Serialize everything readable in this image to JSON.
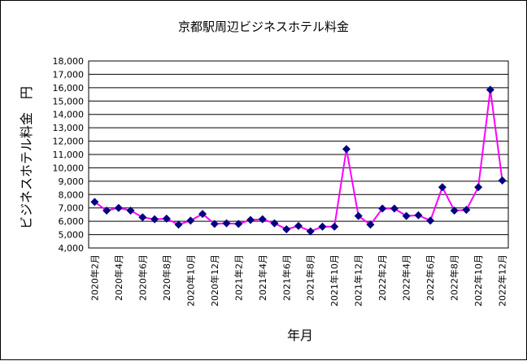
{
  "chart_data": {
    "type": "line",
    "title": "京都駅周辺ビジネスホテル料金",
    "xlabel": "年月",
    "ylabel": "ビジネスホテル料金　円",
    "ylim": [
      4000,
      18000
    ],
    "ytick_step": 1000,
    "ytick_labels": [
      "4,000",
      "5,000",
      "6,000",
      "7,000",
      "8,000",
      "9,000",
      "10,000",
      "11,000",
      "12,000",
      "13,000",
      "14,000",
      "15,000",
      "16,000",
      "17,000",
      "18,000"
    ],
    "grid": true,
    "line_color": "#ff00ff",
    "marker_color": "#000080",
    "categories": [
      "2020年2月",
      "2020年3月",
      "2020年4月",
      "2020年5月",
      "2020年6月",
      "2020年7月",
      "2020年8月",
      "2020年9月",
      "2020年10月",
      "2020年11月",
      "2020年12月",
      "2021年1月",
      "2021年2月",
      "2021年3月",
      "2021年4月",
      "2021年5月",
      "2021年6月",
      "2021年7月",
      "2021年8月",
      "2021年9月",
      "2021年10月",
      "2021年11月",
      "2021年12月",
      "2022年1月",
      "2022年2月",
      "2022年3月",
      "2022年4月",
      "2022年5月",
      "2022年6月",
      "2022年7月",
      "2022年8月",
      "2022年9月",
      "2022年10月",
      "2022年11月",
      "2022年12月"
    ],
    "visible_xtick_labels": [
      "2020年2月",
      "2020年4月",
      "2020年6月",
      "2020年8月",
      "2020年10月",
      "2020年12月",
      "2021年2月",
      "2021年4月",
      "2021年6月",
      "2021年8月",
      "2021年10月",
      "2021年12月",
      "2022年2月",
      "2022年4月",
      "2022年6月",
      "2022年8月",
      "2022年10月",
      "2022年12月"
    ],
    "values": [
      7450,
      6800,
      7000,
      6800,
      6300,
      6150,
      6200,
      5750,
      6050,
      6550,
      5800,
      5850,
      5800,
      6100,
      6150,
      5850,
      5400,
      5650,
      5250,
      5600,
      5600,
      11400,
      6400,
      5750,
      6950,
      6950,
      6400,
      6450,
      6050,
      8550,
      6800,
      6850,
      8550,
      15850,
      9050
    ]
  }
}
